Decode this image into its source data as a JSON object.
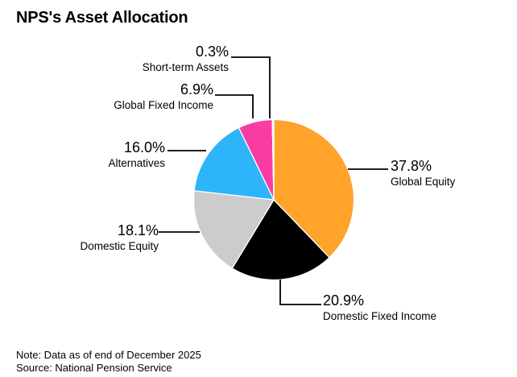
{
  "title": "NPS's Asset Allocation",
  "footer": {
    "note": "Note: Data as of end of December 2025",
    "source": "Source: National Pension Service"
  },
  "chart_data": {
    "type": "pie",
    "title": "NPS's Asset Allocation",
    "unit": "%",
    "direction": "clockwise",
    "start_angle_deg": 0,
    "legend_position": "callout-labels",
    "slices": [
      {
        "label": "Global Equity",
        "value": 37.8,
        "display": "37.8%",
        "color": "#FFA32B"
      },
      {
        "label": "Domestic Fixed Income",
        "value": 20.9,
        "display": "20.9%",
        "color": "#000000"
      },
      {
        "label": "Domestic Equity",
        "value": 18.1,
        "display": "18.1%",
        "color": "#CCCCCC"
      },
      {
        "label": "Alternatives",
        "value": 16.0,
        "display": "16.0%",
        "color": "#2EB4F8"
      },
      {
        "label": "Global Fixed Income",
        "value": 6.9,
        "display": "6.9%",
        "color": "#F93CA2"
      },
      {
        "label": "Short-term Assets",
        "value": 0.3,
        "display": "0.3%",
        "color": "#A9E3FA"
      }
    ],
    "note": "Note: Data as of end of December 2025",
    "source": "Source: National Pension Service"
  }
}
